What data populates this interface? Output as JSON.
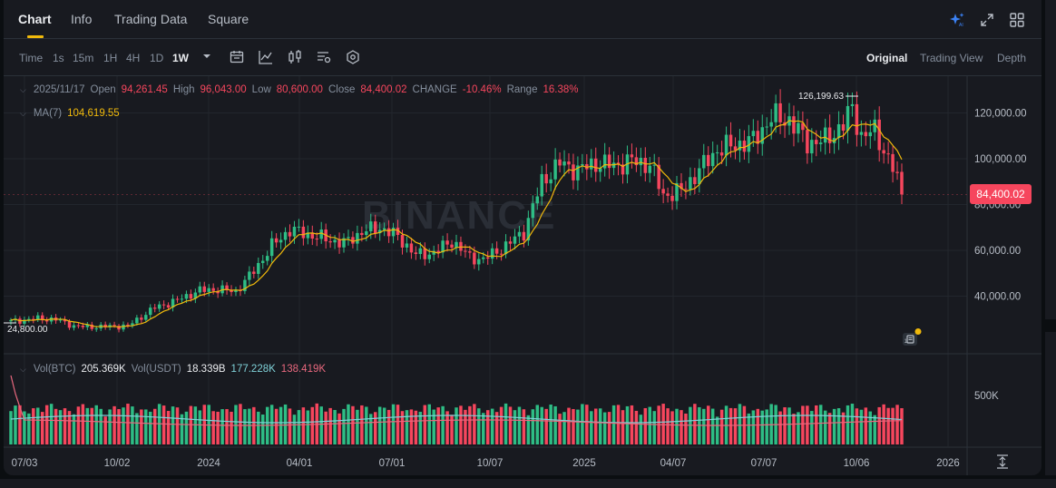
{
  "tabs": [
    {
      "label": "Chart",
      "active": true
    },
    {
      "label": "Info",
      "active": false
    },
    {
      "label": "Trading Data",
      "active": false
    },
    {
      "label": "Square",
      "active": false
    }
  ],
  "toolbar": {
    "intervals": [
      "Time",
      "1s",
      "15m",
      "1H",
      "4H",
      "1D",
      "1W"
    ],
    "active_interval": "1W",
    "views": [
      "Original",
      "Trading View",
      "Depth"
    ],
    "active_view": "Original"
  },
  "ohlc": {
    "date": "2025/11/17",
    "open_label": "Open",
    "open": "94,261.45",
    "high_label": "High",
    "high": "96,043.00",
    "low_label": "Low",
    "low": "80,600.00",
    "close_label": "Close",
    "close": "84,400.02",
    "change_label": "CHANGE",
    "change": "-10.46%",
    "range_label": "Range",
    "range": "16.38%"
  },
  "ma": {
    "label": "MA(7)",
    "value": "104,619.55"
  },
  "volume": {
    "vol_btc_label": "Vol(BTC)",
    "vol_btc": "205.369K",
    "vol_usdt_label": "Vol(USDT)",
    "vol_usdt": "18.339B",
    "ma1": "177.228K",
    "ma2": "138.419K",
    "axis_label": "500K"
  },
  "price_axis": [
    "120,000.00",
    "100,000.00",
    "80,000.00",
    "60,000.00",
    "40,000.00"
  ],
  "time_axis": [
    "07/03",
    "10/02",
    "2024",
    "04/01",
    "07/01",
    "10/07",
    "2025",
    "04/07",
    "07/07",
    "10/06",
    "2026"
  ],
  "current_price": "84,400.02",
  "high_marker": "126,199.63",
  "low_marker": "24,800.00",
  "watermark": "BINANCE",
  "colors": {
    "up": "#2ebd85",
    "down": "#f6465d",
    "ma": "#f0b90b",
    "accent": "#f0b90b"
  },
  "chart_data": {
    "type": "candlestick",
    "x_range": [
      "2023/06/26",
      "2025/11/17"
    ],
    "ylim": [
      24800,
      126199.63
    ],
    "series": [
      {
        "name": "MA(7)",
        "value_last": 104619.55
      }
    ],
    "last_candle": {
      "open": 94261.45,
      "high": 96043.0,
      "low": 80600.0,
      "close": 84400.02
    }
  }
}
